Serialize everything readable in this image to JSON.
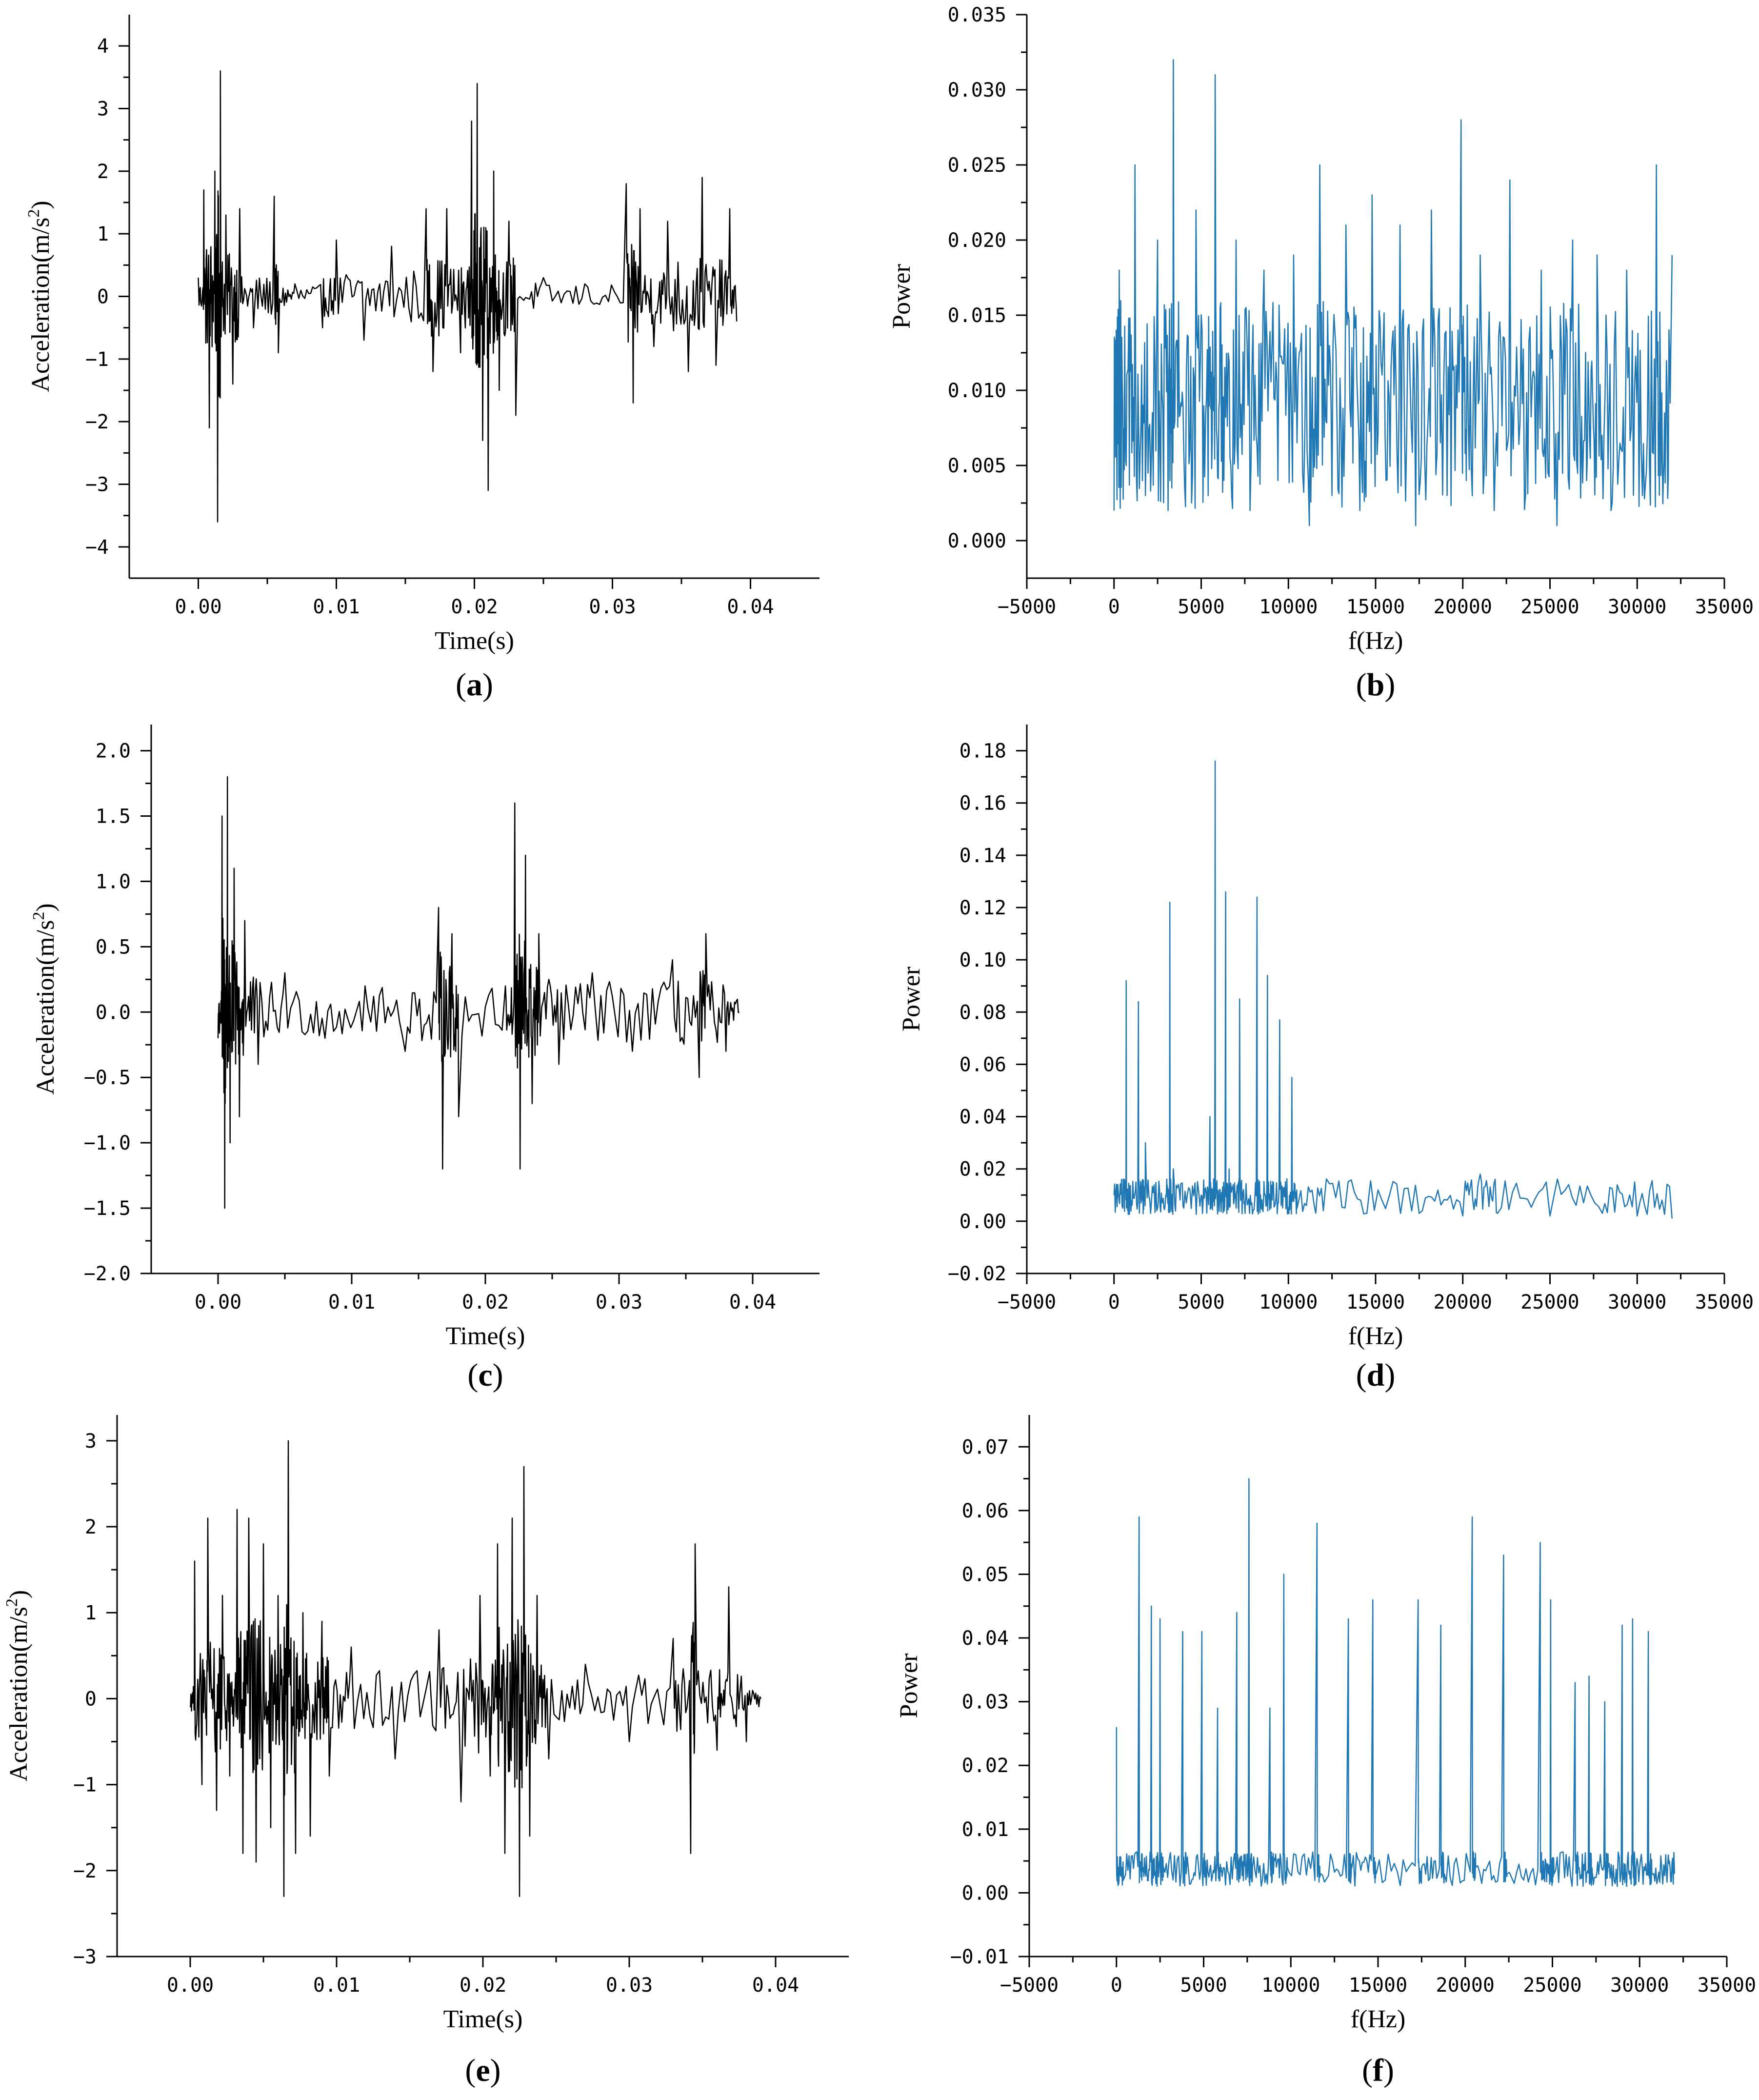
{
  "chart_data": [
    {
      "id": "a",
      "type": "line",
      "panel_label": "a",
      "color": "#000000",
      "xlabel": "Time(s)",
      "ylabel_main": "Acceleration(m/s",
      "ylabel_sup": "2",
      "ylabel_end": ")",
      "xlim": [
        -0.005,
        0.045
      ],
      "ylim": [
        -4.5,
        4.5
      ],
      "xticks": [
        0.0,
        0.01,
        0.02,
        0.03,
        0.04
      ],
      "xtick_labels": [
        "0.00",
        "0.01",
        "0.02",
        "0.03",
        "0.04"
      ],
      "yticks": [
        -4,
        -3,
        -2,
        -1,
        0,
        1,
        2,
        3,
        4
      ],
      "ytick_labels": [
        "−4",
        "−3",
        "−2",
        "−1",
        "0",
        "1",
        "2",
        "3",
        "4"
      ],
      "x": [
        0,
        0.0004,
        0.0008,
        0.0012,
        0.0014,
        0.0016,
        0.002,
        0.0025,
        0.003,
        0.004,
        0.0055,
        0.0058,
        0.007,
        0.009,
        0.01,
        0.012,
        0.014,
        0.0165,
        0.017,
        0.018,
        0.019,
        0.0198,
        0.0202,
        0.0206,
        0.021,
        0.0214,
        0.0218,
        0.0225,
        0.023,
        0.025,
        0.028,
        0.031,
        0.0315,
        0.032,
        0.033,
        0.034,
        0.0355,
        0.0365,
        0.0375,
        0.0385,
        0.039
      ],
      "y": [
        0.3,
        1.7,
        -2.1,
        2.0,
        -3.6,
        3.6,
        1.3,
        -1.4,
        1.4,
        -0.5,
        1.6,
        -0.9,
        0.2,
        -0.5,
        0.9,
        -0.7,
        0.8,
        1.4,
        -1.2,
        1.4,
        -0.9,
        2.8,
        3.4,
        -2.3,
        -3.1,
        2.0,
        -1.5,
        1.2,
        -1.9,
        0.3,
        0.2,
        1.8,
        -1.7,
        1.4,
        -0.8,
        1.2,
        -1.2,
        1.9,
        -1.1,
        1.4,
        -0.4
      ]
    },
    {
      "id": "b",
      "type": "line",
      "panel_label": "b",
      "color": "#1f77b4",
      "xlabel": "f(Hz)",
      "ylabel_main": "Power",
      "ylabel_sup": "",
      "ylabel_end": "",
      "xlim": [
        -5000,
        35000
      ],
      "ylim": [
        -0.0025,
        0.035
      ],
      "xticks": [
        -5000,
        0,
        5000,
        10000,
        15000,
        20000,
        25000,
        30000,
        35000
      ],
      "xtick_labels": [
        "−5000",
        "0",
        "5000",
        "10000",
        "15000",
        "20000",
        "25000",
        "30000",
        "35000"
      ],
      "yticks": [
        0.0,
        0.005,
        0.01,
        0.015,
        0.02,
        0.025,
        0.03,
        0.035
      ],
      "ytick_labels": [
        "0.000",
        "0.005",
        "0.010",
        "0.015",
        "0.020",
        "0.025",
        "0.030",
        "0.035"
      ],
      "x": [
        0,
        300,
        700,
        1200,
        1800,
        2500,
        3100,
        3400,
        4000,
        4700,
        5400,
        5800,
        6300,
        7000,
        7800,
        8600,
        9400,
        10300,
        11200,
        11800,
        12500,
        13300,
        14100,
        14800,
        15600,
        16400,
        17300,
        18200,
        19100,
        19900,
        20200,
        21000,
        21800,
        22700,
        23600,
        24500,
        25400,
        26300,
        27100,
        27700,
        28500,
        29400,
        30300,
        31100,
        31500,
        32000
      ],
      "y": [
        0.002,
        0.018,
        0.005,
        0.025,
        0.003,
        0.02,
        0.002,
        0.032,
        0.006,
        0.022,
        0.003,
        0.031,
        0.004,
        0.02,
        0.002,
        0.018,
        0.004,
        0.019,
        0.001,
        0.025,
        0.003,
        0.021,
        0.002,
        0.023,
        0.004,
        0.021,
        0.001,
        0.022,
        0.003,
        0.028,
        0.004,
        0.019,
        0.002,
        0.024,
        0.003,
        0.018,
        0.001,
        0.02,
        0.004,
        0.019,
        0.002,
        0.018,
        0.003,
        0.025,
        0.004,
        0.019
      ]
    },
    {
      "id": "c",
      "type": "line",
      "panel_label": "c",
      "color": "#000000",
      "xlabel": "Time(s)",
      "ylabel_main": "Acceleration(m/s",
      "ylabel_sup": "2",
      "ylabel_end": ")",
      "xlim": [
        -0.005,
        0.045
      ],
      "ylim": [
        -2.0,
        2.2
      ],
      "xticks": [
        0.0,
        0.01,
        0.02,
        0.03,
        0.04
      ],
      "xtick_labels": [
        "0.00",
        "0.01",
        "0.02",
        "0.03",
        "0.04"
      ],
      "yticks": [
        -2.0,
        -1.5,
        -1.0,
        -0.5,
        0.0,
        0.5,
        1.0,
        1.5,
        2.0
      ],
      "ytick_labels": [
        "−2.0",
        "−1.5",
        "−1.0",
        "−0.5",
        "0.0",
        "0.5",
        "1.0",
        "1.5",
        "2.0"
      ],
      "x": [
        0,
        0.0003,
        0.0005,
        0.0007,
        0.0009,
        0.0012,
        0.0016,
        0.002,
        0.003,
        0.005,
        0.008,
        0.011,
        0.014,
        0.0165,
        0.0168,
        0.0175,
        0.018,
        0.0215,
        0.0222,
        0.0226,
        0.023,
        0.0235,
        0.024,
        0.0255,
        0.028,
        0.031,
        0.034,
        0.036,
        0.0365,
        0.038,
        0.039
      ],
      "y": [
        -0.2,
        1.5,
        -1.5,
        1.8,
        -1.0,
        1.1,
        -0.8,
        0.7,
        -0.4,
        0.3,
        -0.2,
        0.2,
        -0.3,
        0.8,
        -1.2,
        0.6,
        -0.8,
        0.2,
        1.6,
        -1.2,
        1.2,
        -0.7,
        0.6,
        -0.4,
        0.3,
        -0.3,
        0.4,
        -0.5,
        0.6,
        -0.3,
        0.0
      ]
    },
    {
      "id": "d",
      "type": "line",
      "panel_label": "d",
      "color": "#1f77b4",
      "xlabel": "f(Hz)",
      "ylabel_main": "Power",
      "ylabel_sup": "",
      "ylabel_end": "",
      "xlim": [
        -5000,
        35000
      ],
      "ylim": [
        -0.02,
        0.19
      ],
      "xticks": [
        -5000,
        0,
        5000,
        10000,
        15000,
        20000,
        25000,
        30000,
        35000
      ],
      "xtick_labels": [
        "−5000",
        "0",
        "5000",
        "10000",
        "15000",
        "20000",
        "25000",
        "30000",
        "35000"
      ],
      "yticks": [
        -0.02,
        0.0,
        0.02,
        0.04,
        0.06,
        0.08,
        0.1,
        0.12,
        0.14,
        0.16,
        0.18
      ],
      "ytick_labels": [
        "−0.02",
        "0.00",
        "0.02",
        "0.04",
        "0.06",
        "0.08",
        "0.10",
        "0.12",
        "0.14",
        "0.16",
        "0.18"
      ],
      "x": [
        0,
        500,
        700,
        900,
        1400,
        1600,
        1800,
        2500,
        3000,
        3200,
        3400,
        4000,
        5000,
        5500,
        5800,
        6000,
        6400,
        6600,
        7000,
        7200,
        7600,
        8200,
        8400,
        8800,
        9000,
        9500,
        9800,
        10200,
        10500,
        12000,
        14500,
        17500,
        20000,
        21000,
        22000,
        25000,
        28000,
        30000,
        32000
      ],
      "y": [
        0.01,
        0.005,
        0.092,
        0.01,
        0.084,
        0.008,
        0.03,
        0.005,
        0.01,
        0.122,
        0.02,
        0.005,
        0.01,
        0.04,
        0.176,
        0.01,
        0.126,
        0.02,
        0.005,
        0.085,
        0.01,
        0.124,
        0.01,
        0.094,
        0.005,
        0.077,
        0.01,
        0.055,
        0.005,
        0.004,
        0.003,
        0.003,
        0.002,
        0.018,
        0.003,
        0.002,
        0.003,
        0.002,
        0.001
      ]
    },
    {
      "id": "e",
      "type": "line",
      "panel_label": "e",
      "color": "#000000",
      "xlabel": "Time(s)",
      "ylabel_main": "Acceleration(m/s",
      "ylabel_sup": "2",
      "ylabel_end": ")",
      "xlim": [
        -0.005,
        0.045
      ],
      "ylim": [
        -3.0,
        3.3
      ],
      "xticks": [
        0.0,
        0.01,
        0.02,
        0.03,
        0.04
      ],
      "xtick_labels": [
        "0.00",
        "0.01",
        "0.02",
        "0.03",
        "0.04"
      ],
      "yticks": [
        -3,
        -2,
        -1,
        0,
        1,
        2,
        3
      ],
      "ytick_labels": [
        "−3",
        "−2",
        "−1",
        "0",
        "1",
        "2",
        "3"
      ],
      "x": [
        0,
        0.0003,
        0.0008,
        0.0012,
        0.0018,
        0.0022,
        0.0027,
        0.0032,
        0.0036,
        0.004,
        0.0045,
        0.005,
        0.0055,
        0.006,
        0.0064,
        0.0067,
        0.0072,
        0.0077,
        0.0082,
        0.009,
        0.0095,
        0.011,
        0.014,
        0.017,
        0.0185,
        0.0198,
        0.0205,
        0.021,
        0.0215,
        0.022,
        0.0225,
        0.0228,
        0.0232,
        0.0237,
        0.0245,
        0.027,
        0.03,
        0.033,
        0.0342,
        0.0345,
        0.036,
        0.0368,
        0.038,
        0.039
      ],
      "y": [
        -0.1,
        1.6,
        -1.0,
        2.1,
        -1.3,
        1.2,
        -0.9,
        2.2,
        -1.8,
        2.1,
        -1.9,
        1.8,
        -1.5,
        1.2,
        -2.3,
        3.0,
        -1.8,
        1.0,
        -1.6,
        0.9,
        -0.9,
        0.6,
        -0.7,
        0.8,
        -1.2,
        1.2,
        -0.9,
        1.8,
        -1.8,
        2.1,
        -2.3,
        2.7,
        -1.6,
        1.2,
        -0.7,
        0.4,
        -0.5,
        0.7,
        -1.8,
        1.8,
        -0.6,
        1.3,
        -0.5,
        0.0
      ]
    },
    {
      "id": "f",
      "type": "line",
      "panel_label": "f",
      "color": "#1f77b4",
      "xlabel": "f(Hz)",
      "ylabel_main": "Power",
      "ylabel_sup": "",
      "ylabel_end": "",
      "xlim": [
        -5000,
        35000
      ],
      "ylim": [
        -0.01,
        0.075
      ],
      "xticks": [
        -5000,
        0,
        5000,
        10000,
        15000,
        20000,
        25000,
        30000,
        35000
      ],
      "xtick_labels": [
        "−5000",
        "0",
        "5000",
        "10000",
        "15000",
        "20000",
        "25000",
        "30000",
        "35000"
      ],
      "yticks": [
        -0.01,
        0.0,
        0.01,
        0.02,
        0.03,
        0.04,
        0.05,
        0.06,
        0.07
      ],
      "ytick_labels": [
        "−0.01",
        "0.00",
        "0.01",
        "0.02",
        "0.03",
        "0.04",
        "0.05",
        "0.06",
        "0.07"
      ],
      "x": [
        0,
        100,
        400,
        1300,
        1500,
        2000,
        2200,
        2500,
        2700,
        3800,
        4000,
        4900,
        5100,
        5800,
        6000,
        6900,
        7100,
        7600,
        7800,
        8800,
        9000,
        9600,
        9800,
        11500,
        11700,
        13300,
        13500,
        14700,
        14900,
        17300,
        17500,
        18600,
        18800,
        20400,
        20600,
        22200,
        22400,
        24300,
        24500,
        24900,
        25100,
        26300,
        26500,
        27100,
        27300,
        28000,
        28200,
        29000,
        29200,
        29600,
        29800,
        30500,
        30700,
        31500,
        32000
      ],
      "y": [
        0.026,
        0.004,
        0.002,
        0.059,
        0.004,
        0.045,
        0.003,
        0.043,
        0.004,
        0.041,
        0.003,
        0.041,
        0.005,
        0.029,
        0.004,
        0.044,
        0.003,
        0.065,
        0.004,
        0.029,
        0.003,
        0.05,
        0.004,
        0.058,
        0.003,
        0.043,
        0.004,
        0.046,
        0.003,
        0.046,
        0.004,
        0.042,
        0.003,
        0.059,
        0.004,
        0.053,
        0.003,
        0.055,
        0.004,
        0.046,
        0.003,
        0.033,
        0.004,
        0.034,
        0.003,
        0.03,
        0.004,
        0.042,
        0.003,
        0.043,
        0.004,
        0.041,
        0.003,
        0.006,
        0.003
      ]
    }
  ]
}
